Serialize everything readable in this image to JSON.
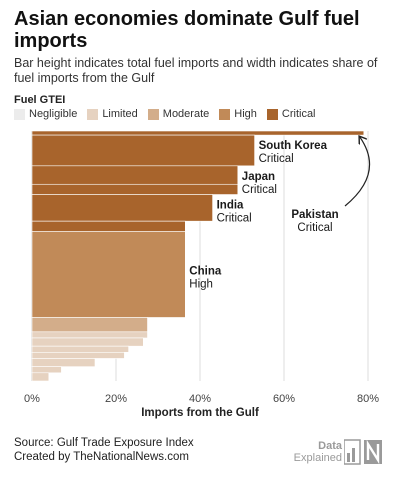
{
  "header": {
    "title": "Asian economies dominate Gulf fuel imports",
    "subtitle": "Bar height indicates total fuel imports and width indicates share of fuel imports from the Gulf"
  },
  "legend": {
    "title": "Fuel GTEI",
    "items": [
      {
        "label": "Negligible",
        "color": "#ececec"
      },
      {
        "label": "Limited",
        "color": "#e6d2c0"
      },
      {
        "label": "Moderate",
        "color": "#d3ad8a"
      },
      {
        "label": "High",
        "color": "#c18a58"
      },
      {
        "label": "Critical",
        "color": "#a8642c"
      }
    ]
  },
  "footer": {
    "source": "Source: Gulf Trade Exposure Index",
    "credit": "Created by TheNationalNews.com"
  },
  "brand": {
    "line1": "Data",
    "line2": "Explained"
  },
  "chart_data": {
    "type": "bar",
    "orientation": "horizontal",
    "xlabel": "Imports from the Gulf",
    "xlim": [
      0,
      80
    ],
    "xticks": [
      0,
      20,
      40,
      60,
      80
    ],
    "xtick_labels": [
      "0%",
      "20%",
      "40%",
      "60%",
      "80%"
    ],
    "grid": true,
    "bars": [
      {
        "value": 79,
        "height": 1.0,
        "category": "Critical",
        "label": "Pakistan"
      },
      {
        "value": 53,
        "height": 7.5,
        "category": "Critical",
        "label": "South Korea"
      },
      {
        "value": 49,
        "height": 4.5,
        "category": "Critical",
        "label": "Japan"
      },
      {
        "value": 49,
        "height": 2.5,
        "category": "Critical"
      },
      {
        "value": 43,
        "height": 6.5,
        "category": "Critical",
        "label": "India"
      },
      {
        "value": 36.5,
        "height": 2.5,
        "category": "Critical"
      },
      {
        "value": 36.5,
        "height": 21.0,
        "category": "High",
        "label": "China"
      },
      {
        "value": 27.5,
        "height": 3.5,
        "category": "Moderate"
      },
      {
        "value": 27.5,
        "height": 1.5,
        "category": "Limited"
      },
      {
        "value": 26.5,
        "height": 2.0,
        "category": "Limited"
      },
      {
        "value": 23,
        "height": 1.5,
        "category": "Limited"
      },
      {
        "value": 22,
        "height": 1.5,
        "category": "Limited"
      },
      {
        "value": 15,
        "height": 2.0,
        "category": "Limited"
      },
      {
        "value": 7,
        "height": 1.5,
        "category": "Limited"
      },
      {
        "value": 4,
        "height": 2.0,
        "category": "Limited"
      }
    ],
    "annotations": [
      {
        "country": "South Korea",
        "status": "Critical"
      },
      {
        "country": "Japan",
        "status": "Critical"
      },
      {
        "country": "India",
        "status": "Critical"
      },
      {
        "country": "China",
        "status": "High"
      },
      {
        "country": "Pakistan",
        "status": "Critical"
      }
    ]
  }
}
